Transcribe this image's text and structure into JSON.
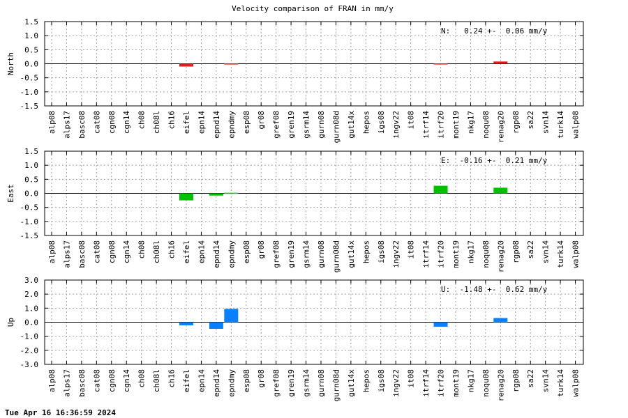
{
  "title": "Velocity comparison of FRAN in mm/y",
  "timestamp": "Tue Apr 16 16:36:59 2024",
  "colors": {
    "north": "#e0201c",
    "east": "#00c000",
    "up": "#0a80ff"
  },
  "chart_data": {
    "type": "bar",
    "title": "Velocity comparison of FRAN in mm/y",
    "categories": [
      "alp08",
      "alps17",
      "basc08",
      "cat08",
      "cgn08",
      "cgn14",
      "ch08",
      "ch08l",
      "ch16",
      "eifel",
      "epn14",
      "epnd14",
      "epndmy",
      "esp08",
      "gr08",
      "gref08",
      "gren19",
      "gsrm14",
      "gurn08",
      "gurn08d",
      "gut14x",
      "hepos",
      "igs08",
      "ingv22",
      "it08",
      "itrf14",
      "itrf20",
      "mont19",
      "nkg17",
      "noqu08",
      "renag20",
      "rgp08",
      "sa22",
      "svn14",
      "turk14",
      "walp08"
    ],
    "grid": true,
    "panels": [
      {
        "name": "north",
        "ylabel": "North",
        "ylim": [
          -1.5,
          1.5
        ],
        "yticks": [
          "-1.5",
          "-1.0",
          "-0.5",
          "0.0",
          "0.5",
          "1.0",
          "1.5"
        ],
        "ytick_values": [
          -1.5,
          -1.0,
          -0.5,
          0.0,
          0.5,
          1.0,
          1.5
        ],
        "stat_label": "N:   0.24 +-  0.06 mm/y",
        "color": "#e0201c",
        "values": [
          null,
          null,
          null,
          null,
          null,
          null,
          null,
          null,
          null,
          -0.1,
          null,
          null,
          0.01,
          null,
          null,
          null,
          null,
          null,
          null,
          null,
          null,
          null,
          null,
          null,
          null,
          null,
          0.01,
          null,
          null,
          null,
          0.08,
          null,
          null,
          null,
          null,
          null
        ]
      },
      {
        "name": "east",
        "ylabel": "East",
        "ylim": [
          -1.5,
          1.5
        ],
        "yticks": [
          "-1.5",
          "-1.0",
          "-0.5",
          "0.0",
          "0.5",
          "1.0",
          "1.5"
        ],
        "ytick_values": [
          -1.5,
          -1.0,
          -0.5,
          0.0,
          0.5,
          1.0,
          1.5
        ],
        "stat_label": "E:  -0.16 +-  0.21 mm/y",
        "color": "#00c000",
        "values": [
          null,
          null,
          null,
          null,
          null,
          null,
          null,
          null,
          null,
          -0.25,
          null,
          -0.08,
          0.02,
          null,
          null,
          null,
          null,
          null,
          null,
          null,
          null,
          null,
          null,
          null,
          null,
          null,
          0.27,
          null,
          null,
          null,
          0.2,
          null,
          null,
          null,
          null,
          null
        ]
      },
      {
        "name": "up",
        "ylabel": "Up",
        "ylim": [
          -3.0,
          3.0
        ],
        "yticks": [
          "-3.0",
          "-2.0",
          "-1.0",
          "0.0",
          "1.0",
          "2.0",
          "3.0"
        ],
        "ytick_values": [
          -3.0,
          -2.0,
          -1.0,
          0.0,
          1.0,
          2.0,
          3.0
        ],
        "stat_label": "U:  -1.48 +-  0.62 mm/y",
        "color": "#0a80ff",
        "values": [
          null,
          null,
          null,
          null,
          null,
          null,
          null,
          null,
          null,
          -0.22,
          null,
          -0.47,
          0.95,
          null,
          null,
          null,
          null,
          null,
          null,
          null,
          null,
          null,
          null,
          null,
          null,
          null,
          -0.32,
          null,
          null,
          null,
          0.3,
          null,
          null,
          null,
          null,
          null
        ]
      }
    ]
  }
}
